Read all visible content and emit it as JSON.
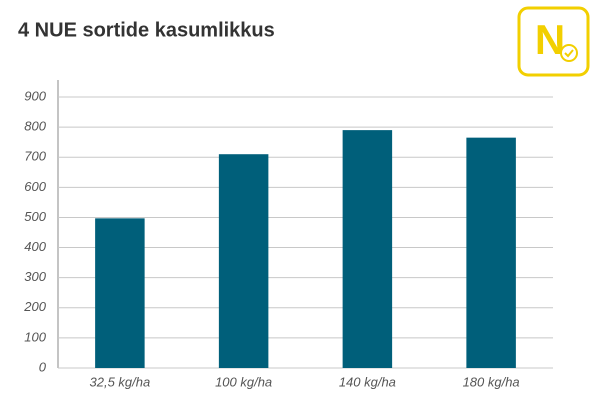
{
  "chart_data": {
    "type": "bar",
    "title": "4 NUE sortide kasumlikkus",
    "logo": "N",
    "categories": [
      "32,5 kg/ha",
      "100 kg/ha",
      "140 kg/ha",
      "180 kg/ha"
    ],
    "values": [
      497,
      710,
      790,
      765
    ],
    "color": "#005f7a",
    "ylim": [
      0,
      900
    ],
    "yticks": [
      0,
      100,
      200,
      300,
      400,
      500,
      600,
      700,
      800,
      900
    ],
    "grid": true
  }
}
